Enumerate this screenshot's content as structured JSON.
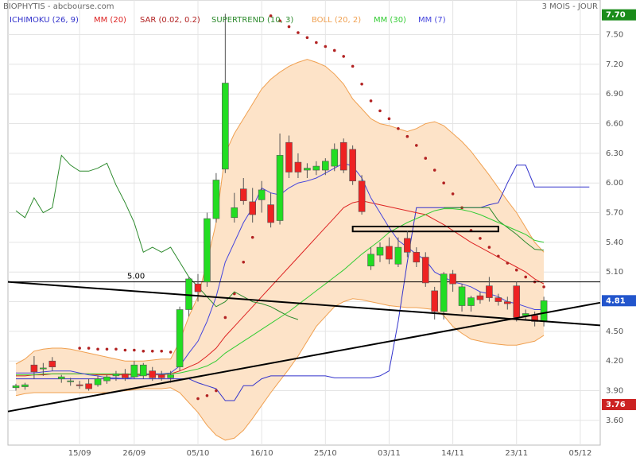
{
  "header": {
    "title": "BIOPHYTIS - abcbourse.com",
    "period": "3 MOIS - JOUR"
  },
  "chart_data": {
    "type": "candlestick",
    "categories": [
      null,
      null,
      null,
      null,
      null,
      null,
      null,
      "15/09",
      null,
      null,
      null,
      null,
      null,
      "26/09",
      null,
      null,
      null,
      null,
      null,
      null,
      "05/10",
      null,
      null,
      null,
      null,
      null,
      null,
      "16/10",
      null,
      null,
      null,
      null,
      null,
      null,
      "25/10",
      null,
      null,
      null,
      null,
      null,
      null,
      "03/11",
      null,
      null,
      null,
      null,
      null,
      null,
      "14/11",
      null,
      null,
      null,
      null,
      null,
      null,
      "23/11",
      null,
      null,
      null,
      null,
      null,
      null,
      "05/12",
      null
    ],
    "open": [
      3.93,
      3.94,
      4.16,
      4.12,
      4.2,
      4.02,
      3.99,
      3.96,
      3.97,
      3.96,
      4.0,
      4.05,
      4.07,
      4.04,
      4.05,
      4.1,
      4.06,
      4.03,
      4.14,
      4.72,
      4.98,
      5.0,
      5.64,
      6.14,
      5.65,
      5.94,
      5.81,
      5.83,
      5.78,
      5.62,
      6.41,
      6.21,
      6.13,
      6.13,
      6.13,
      6.17,
      6.41,
      6.34,
      6.02,
      5.16,
      5.27,
      5.36,
      5.18,
      5.44,
      5.3,
      5.25,
      4.91,
      4.7,
      5.08,
      4.76,
      4.76,
      4.86,
      4.96,
      4.84,
      4.8,
      4.96,
      4.66,
      4.66,
      4.6,
      null,
      null,
      null,
      null,
      null
    ],
    "high": [
      3.97,
      3.98,
      4.25,
      4.18,
      4.24,
      4.06,
      4.03,
      4.0,
      4.02,
      4.05,
      4.06,
      4.1,
      4.12,
      4.2,
      4.18,
      4.14,
      4.1,
      4.1,
      4.75,
      5.05,
      5.08,
      5.7,
      6.1,
      7.71,
      5.9,
      6.05,
      5.95,
      6.02,
      5.9,
      6.5,
      6.48,
      6.3,
      6.2,
      6.22,
      6.25,
      6.4,
      6.45,
      6.38,
      6.08,
      5.35,
      5.4,
      5.45,
      5.45,
      5.52,
      5.35,
      5.3,
      4.95,
      5.1,
      5.12,
      4.98,
      4.86,
      4.9,
      5.05,
      4.88,
      4.85,
      5.0,
      4.72,
      4.7,
      4.85,
      null,
      null,
      null,
      null,
      null
    ],
    "low": [
      3.9,
      3.91,
      4.02,
      4.05,
      4.1,
      3.98,
      3.95,
      3.92,
      3.9,
      3.94,
      3.97,
      4.0,
      4.0,
      4.02,
      4.02,
      4.0,
      4.0,
      3.98,
      4.1,
      4.65,
      4.8,
      4.95,
      5.6,
      6.1,
      5.6,
      5.78,
      5.6,
      5.7,
      5.55,
      5.58,
      6.05,
      6.05,
      6.05,
      6.08,
      6.08,
      6.12,
      6.1,
      5.98,
      5.68,
      5.12,
      5.2,
      5.18,
      5.15,
      5.25,
      5.15,
      4.95,
      4.62,
      4.62,
      4.9,
      4.7,
      4.7,
      4.78,
      4.8,
      4.76,
      4.72,
      4.6,
      4.62,
      4.55,
      4.55,
      null,
      null,
      null,
      null,
      null
    ],
    "close": [
      3.95,
      3.96,
      4.09,
      4.13,
      4.14,
      4.04,
      4.0,
      3.95,
      3.92,
      4.02,
      4.04,
      4.07,
      4.03,
      4.16,
      4.16,
      4.03,
      4.03,
      4.06,
      4.72,
      5.03,
      4.9,
      5.64,
      6.03,
      7.01,
      5.75,
      5.82,
      5.68,
      5.93,
      5.6,
      6.28,
      6.11,
      6.11,
      6.15,
      6.17,
      6.22,
      6.34,
      6.13,
      6.02,
      5.71,
      5.28,
      5.35,
      5.23,
      5.35,
      5.3,
      5.2,
      4.99,
      4.7,
      5.08,
      4.98,
      4.95,
      4.84,
      4.82,
      4.84,
      4.8,
      4.78,
      4.64,
      4.68,
      4.6,
      4.81,
      null,
      null,
      null,
      null,
      null
    ],
    "up_color": "#22dd22",
    "down_color": "#ee2222",
    "series": [
      {
        "name": "ICHIMOKU (26, 9)",
        "color": "#3333cc",
        "style": "line",
        "values": [
          4.02,
          4.02,
          4.02,
          4.02,
          4.02,
          4.02,
          4.02,
          4.02,
          4.02,
          4.02,
          4.02,
          4.02,
          4.02,
          4.02,
          4.02,
          4.02,
          4.02,
          4.02,
          4.02,
          4.02,
          3.98,
          3.95,
          3.92,
          3.8,
          3.8,
          3.95,
          3.95,
          4.02,
          4.05,
          4.05,
          4.05,
          4.05,
          4.05,
          4.05,
          4.05,
          4.03,
          4.03,
          4.03,
          4.03,
          4.03,
          4.05,
          4.1,
          4.6,
          5.2,
          5.75,
          5.75,
          5.75,
          5.75,
          5.75,
          5.75,
          5.75,
          5.75,
          5.78,
          5.8,
          6.0,
          6.18,
          6.18,
          5.96,
          5.96,
          5.96,
          5.96,
          5.96,
          5.96,
          5.96
        ]
      },
      {
        "name": "MM (20)",
        "color": "#dd2222",
        "style": "line",
        "values": [
          4.05,
          4.05,
          4.06,
          4.06,
          4.07,
          4.07,
          4.07,
          4.07,
          4.07,
          4.06,
          4.06,
          4.06,
          4.06,
          4.06,
          4.06,
          4.06,
          4.06,
          4.07,
          4.1,
          4.14,
          4.18,
          4.25,
          4.33,
          4.45,
          4.55,
          4.65,
          4.75,
          4.85,
          4.95,
          5.05,
          5.15,
          5.25,
          5.35,
          5.45,
          5.55,
          5.65,
          5.75,
          5.8,
          5.82,
          5.8,
          5.78,
          5.76,
          5.74,
          5.72,
          5.7,
          5.68,
          5.63,
          5.58,
          5.52,
          5.46,
          5.4,
          5.35,
          5.3,
          5.25,
          5.2,
          5.15,
          5.1,
          5.03,
          4.98,
          null,
          null,
          null,
          null,
          null
        ]
      },
      {
        "name": "SAR (0.02, 0.2)",
        "color": "#b22222",
        "style": "dots",
        "values": [
          null,
          null,
          null,
          null,
          null,
          null,
          null,
          4.33,
          4.33,
          4.32,
          4.32,
          4.32,
          4.31,
          4.31,
          4.3,
          4.3,
          4.3,
          4.29,
          4.29,
          null,
          3.82,
          3.85,
          3.9,
          4.64,
          4.88,
          5.2,
          5.45,
          null,
          7.69,
          7.64,
          7.58,
          7.52,
          7.47,
          7.42,
          7.38,
          7.34,
          7.28,
          7.18,
          7.0,
          6.83,
          6.73,
          6.65,
          6.55,
          6.47,
          6.38,
          6.25,
          6.13,
          6.0,
          5.89,
          5.75,
          5.52,
          5.44,
          5.35,
          5.26,
          5.19,
          5.12,
          5.05,
          5.0,
          4.95,
          null,
          null,
          null,
          null,
          null
        ]
      },
      {
        "name": "SUPERTREND (10, 3)",
        "color": "#2e8b2e",
        "style": "line",
        "values": [
          5.72,
          5.65,
          5.85,
          5.7,
          5.75,
          6.28,
          6.18,
          6.12,
          6.12,
          6.15,
          6.2,
          5.98,
          5.8,
          5.6,
          5.3,
          5.35,
          5.3,
          5.35,
          5.2,
          5.05,
          4.95,
          4.85,
          4.75,
          4.8,
          4.9,
          4.85,
          4.8,
          4.78,
          4.75,
          4.7,
          4.65,
          4.62,
          null,
          null,
          null,
          null,
          null,
          null,
          null,
          null,
          null,
          null,
          null,
          null,
          null,
          null,
          null,
          5.75,
          5.75,
          5.75,
          5.75,
          5.75,
          5.75,
          5.62,
          5.55,
          5.48,
          5.4,
          5.33,
          5.32,
          null,
          null,
          null,
          null,
          null
        ]
      },
      {
        "name": "BOLL (20, 2)",
        "color": "#f0a050",
        "fill": "#fde3c8",
        "style": "band",
        "values": [
          4.17,
          4.22,
          4.3,
          4.32,
          4.33,
          4.33,
          4.32,
          4.3,
          4.28,
          4.26,
          4.24,
          4.22,
          4.2,
          4.2,
          4.2,
          4.21,
          4.22,
          4.22,
          4.4,
          4.65,
          4.85,
          5.2,
          5.6,
          6.3,
          6.5,
          6.65,
          6.8,
          6.95,
          7.05,
          7.12,
          7.18,
          7.22,
          7.25,
          7.22,
          7.18,
          7.1,
          7.0,
          6.85,
          6.75,
          6.65,
          6.6,
          6.58,
          6.55,
          6.52,
          6.55,
          6.6,
          6.62,
          6.58,
          6.5,
          6.42,
          6.32,
          6.2,
          6.08,
          5.95,
          5.82,
          5.7,
          5.55,
          5.4,
          5.3,
          null,
          null,
          null,
          null,
          null
        ],
        "lower": [
          3.85,
          3.87,
          3.88,
          3.88,
          3.88,
          3.88,
          3.88,
          3.88,
          3.88,
          3.88,
          3.88,
          3.89,
          3.9,
          3.91,
          3.92,
          3.92,
          3.92,
          3.93,
          3.88,
          3.78,
          3.68,
          3.55,
          3.45,
          3.4,
          3.42,
          3.5,
          3.62,
          3.75,
          3.88,
          4.0,
          4.12,
          4.25,
          4.4,
          4.55,
          4.65,
          4.75,
          4.8,
          4.83,
          4.82,
          4.8,
          4.78,
          4.76,
          4.75,
          4.74,
          4.74,
          4.73,
          4.72,
          4.66,
          4.55,
          4.48,
          4.42,
          4.4,
          4.38,
          4.37,
          4.36,
          4.36,
          4.38,
          4.4,
          4.46,
          null,
          null,
          null,
          null,
          null
        ]
      },
      {
        "name": "MM (30)",
        "color": "#33cc33",
        "style": "line",
        "values": [
          4.06,
          4.06,
          4.06,
          4.07,
          4.07,
          4.07,
          4.07,
          4.07,
          4.07,
          4.07,
          4.07,
          4.07,
          4.07,
          4.07,
          4.07,
          4.07,
          4.07,
          4.07,
          4.08,
          4.1,
          4.12,
          4.15,
          4.2,
          4.28,
          4.34,
          4.4,
          4.46,
          4.52,
          4.58,
          4.64,
          4.7,
          4.77,
          4.84,
          4.91,
          4.98,
          5.05,
          5.12,
          5.2,
          5.28,
          5.35,
          5.42,
          5.5,
          5.55,
          5.6,
          5.64,
          5.68,
          5.72,
          5.74,
          5.74,
          5.73,
          5.71,
          5.68,
          5.64,
          5.6,
          5.56,
          5.52,
          5.48,
          5.42,
          5.4,
          null,
          null,
          null,
          null,
          null
        ]
      },
      {
        "name": "MM (7)",
        "color": "#4444dd",
        "style": "line",
        "values": [
          4.08,
          4.08,
          4.08,
          4.09,
          4.1,
          4.1,
          4.1,
          4.08,
          4.06,
          4.05,
          4.03,
          4.03,
          4.02,
          4.04,
          4.06,
          4.07,
          4.07,
          4.08,
          4.15,
          4.28,
          4.4,
          4.6,
          4.85,
          5.2,
          5.4,
          5.6,
          5.75,
          5.95,
          5.9,
          5.88,
          5.95,
          6.0,
          6.02,
          6.05,
          6.1,
          6.15,
          6.2,
          6.17,
          6.05,
          5.85,
          5.7,
          5.55,
          5.42,
          5.35,
          5.28,
          5.22,
          5.1,
          5.05,
          5.0,
          4.98,
          4.95,
          4.9,
          4.88,
          4.85,
          4.8,
          4.78,
          4.75,
          4.72,
          4.72,
          null,
          null,
          null,
          null,
          null
        ]
      }
    ],
    "ylim": [
      3.35,
      7.85
    ],
    "yticks": [
      {
        "value": 3.6,
        "label": "3.60"
      },
      {
        "value": 3.9,
        "label": "3.90"
      },
      {
        "value": 4.2,
        "label": "4.20"
      },
      {
        "value": 4.5,
        "label": "4.50"
      },
      {
        "value": 4.8,
        "label": "4.80"
      },
      {
        "value": 5.1,
        "label": "5.10"
      },
      {
        "value": 5.4,
        "label": "5.40"
      },
      {
        "value": 5.7,
        "label": "5.70"
      },
      {
        "value": 6.0,
        "label": "6.00"
      },
      {
        "value": 6.3,
        "label": "6.30"
      },
      {
        "value": 6.6,
        "label": "6.60"
      },
      {
        "value": 6.9,
        "label": "6.90"
      },
      {
        "value": 7.2,
        "label": "7.20"
      },
      {
        "value": 7.5,
        "label": "7.50"
      }
    ],
    "grid": true,
    "hline": {
      "value": 5.0,
      "label": "5.00"
    },
    "trendlines": [
      {
        "values": [
          3.69,
          4.79
        ]
      },
      {
        "values": [
          5.0,
          4.56
        ]
      }
    ],
    "zone": {
      "values": [
        5.56,
        5.51
      ]
    },
    "price_labels": [
      {
        "value": 7.7,
        "label": "7.70",
        "color": "#1a8c1a"
      },
      {
        "value": 4.81,
        "label": "4.81",
        "color": "#2255cc"
      },
      {
        "value": 3.76,
        "label": "3.76",
        "color": "#cc2222"
      }
    ]
  }
}
